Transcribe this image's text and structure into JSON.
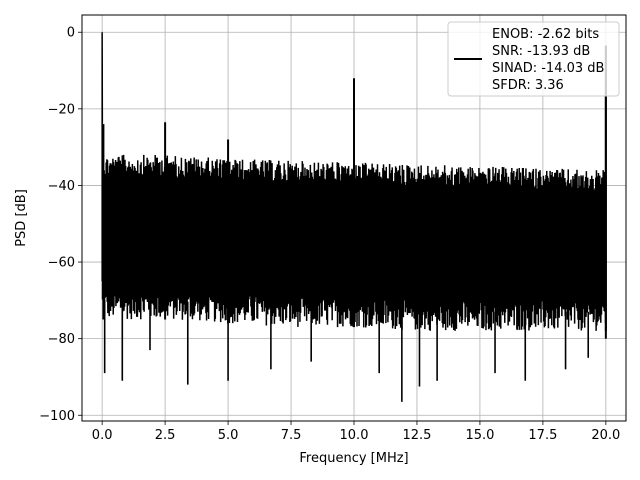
{
  "chart_data": {
    "type": "line",
    "xlabel": "Frequency [MHz]",
    "ylabel": "PSD [dB]",
    "xlim": [
      -0.8,
      20.8
    ],
    "ylim": [
      -101.5,
      4.5
    ],
    "xticks": [
      0.0,
      2.5,
      5.0,
      7.5,
      10.0,
      12.5,
      15.0,
      17.5,
      20.0
    ],
    "xtick_labels": [
      "0.0",
      "2.5",
      "5.0",
      "7.5",
      "10.0",
      "12.5",
      "15.0",
      "17.5",
      "20.0"
    ],
    "yticks": [
      0,
      -20,
      -40,
      -60,
      -80,
      -100
    ],
    "ytick_labels": [
      "0",
      "−20",
      "−40",
      "−60",
      "−80",
      "−100"
    ],
    "grid": true,
    "legend_position": "top-right",
    "series": [
      {
        "name": "",
        "color": "#000000",
        "noise_band": {
          "x": [
            0,
            2.5,
            5,
            7.5,
            10,
            12.5,
            15,
            17.5,
            20
          ],
          "upper": [
            -32,
            -32,
            -33,
            -33.5,
            -34,
            -34.5,
            -35,
            -35.5,
            -36
          ],
          "lower": [
            -75,
            -75,
            -76,
            -77,
            -77,
            -78,
            -78,
            -78,
            -78
          ]
        },
        "spikes": [
          {
            "x": 0.0,
            "y": 0
          },
          {
            "x": 0.05,
            "y": -24
          },
          {
            "x": 2.5,
            "y": -23.5
          },
          {
            "x": 5.0,
            "y": -28
          },
          {
            "x": 10.0,
            "y": -12
          },
          {
            "x": 20.0,
            "y": -3.5
          }
        ],
        "dips": [
          {
            "x": 0.1,
            "y": -89
          },
          {
            "x": 0.8,
            "y": -91
          },
          {
            "x": 1.9,
            "y": -83
          },
          {
            "x": 3.4,
            "y": -92
          },
          {
            "x": 5.0,
            "y": -91
          },
          {
            "x": 6.7,
            "y": -88
          },
          {
            "x": 8.3,
            "y": -86
          },
          {
            "x": 11.0,
            "y": -89
          },
          {
            "x": 11.9,
            "y": -96.5
          },
          {
            "x": 12.6,
            "y": -92.5
          },
          {
            "x": 13.3,
            "y": -91
          },
          {
            "x": 15.6,
            "y": -89
          },
          {
            "x": 16.8,
            "y": -91
          },
          {
            "x": 18.4,
            "y": -88
          },
          {
            "x": 19.3,
            "y": -85
          }
        ]
      }
    ],
    "legend": {
      "entries": [
        "ENOB: -2.62 bits",
        "SNR: -13.93 dB",
        "SINAD: -14.03 dB",
        "SFDR: 3.36"
      ]
    }
  }
}
